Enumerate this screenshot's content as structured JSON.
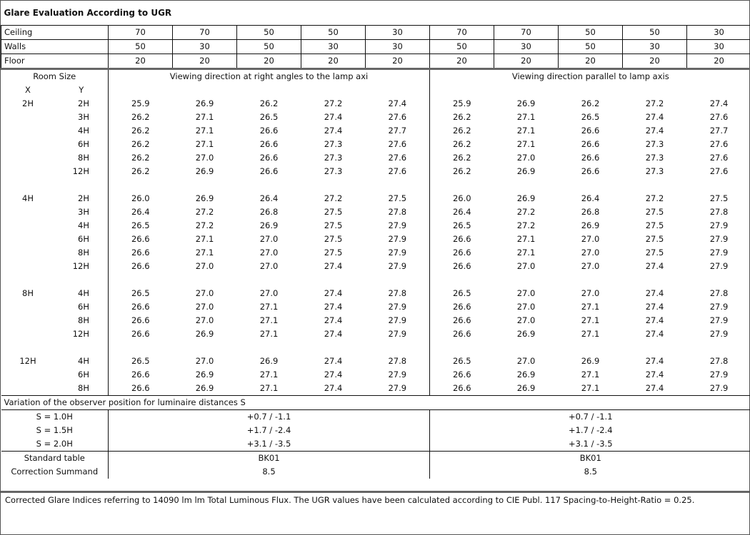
{
  "title": "Glare Evaluation According to UGR",
  "reflectances": [
    {
      "label": "Ceiling",
      "values": [
        "70",
        "70",
        "50",
        "50",
        "30",
        "70",
        "70",
        "50",
        "50",
        "30"
      ]
    },
    {
      "label": "Walls",
      "values": [
        "50",
        "30",
        "50",
        "30",
        "30",
        "50",
        "30",
        "50",
        "30",
        "30"
      ]
    },
    {
      "label": "Floor",
      "values": [
        "20",
        "20",
        "20",
        "20",
        "20",
        "20",
        "20",
        "20",
        "20",
        "20"
      ]
    }
  ],
  "header": {
    "room_size": "Room Size",
    "x": "X",
    "y": "Y",
    "dir_right": "Viewing direction at right angles to the lamp axi",
    "dir_parallel": "Viewing direction parallel to lamp axis"
  },
  "groups": [
    {
      "x": "2H",
      "rows": [
        {
          "y": "2H",
          "v": [
            "25.9",
            "26.9",
            "26.2",
            "27.2",
            "27.4",
            "25.9",
            "26.9",
            "26.2",
            "27.2",
            "27.4"
          ]
        },
        {
          "y": "3H",
          "v": [
            "26.2",
            "27.1",
            "26.5",
            "27.4",
            "27.6",
            "26.2",
            "27.1",
            "26.5",
            "27.4",
            "27.6"
          ]
        },
        {
          "y": "4H",
          "v": [
            "26.2",
            "27.1",
            "26.6",
            "27.4",
            "27.7",
            "26.2",
            "27.1",
            "26.6",
            "27.4",
            "27.7"
          ]
        },
        {
          "y": "6H",
          "v": [
            "26.2",
            "27.1",
            "26.6",
            "27.3",
            "27.6",
            "26.2",
            "27.1",
            "26.6",
            "27.3",
            "27.6"
          ]
        },
        {
          "y": "8H",
          "v": [
            "26.2",
            "27.0",
            "26.6",
            "27.3",
            "27.6",
            "26.2",
            "27.0",
            "26.6",
            "27.3",
            "27.6"
          ]
        },
        {
          "y": "12H",
          "v": [
            "26.2",
            "26.9",
            "26.6",
            "27.3",
            "27.6",
            "26.2",
            "26.9",
            "26.6",
            "27.3",
            "27.6"
          ]
        }
      ]
    },
    {
      "x": "4H",
      "rows": [
        {
          "y": "2H",
          "v": [
            "26.0",
            "26.9",
            "26.4",
            "27.2",
            "27.5",
            "26.0",
            "26.9",
            "26.4",
            "27.2",
            "27.5"
          ]
        },
        {
          "y": "3H",
          "v": [
            "26.4",
            "27.2",
            "26.8",
            "27.5",
            "27.8",
            "26.4",
            "27.2",
            "26.8",
            "27.5",
            "27.8"
          ]
        },
        {
          "y": "4H",
          "v": [
            "26.5",
            "27.2",
            "26.9",
            "27.5",
            "27.9",
            "26.5",
            "27.2",
            "26.9",
            "27.5",
            "27.9"
          ]
        },
        {
          "y": "6H",
          "v": [
            "26.6",
            "27.1",
            "27.0",
            "27.5",
            "27.9",
            "26.6",
            "27.1",
            "27.0",
            "27.5",
            "27.9"
          ]
        },
        {
          "y": "8H",
          "v": [
            "26.6",
            "27.1",
            "27.0",
            "27.5",
            "27.9",
            "26.6",
            "27.1",
            "27.0",
            "27.5",
            "27.9"
          ]
        },
        {
          "y": "12H",
          "v": [
            "26.6",
            "27.0",
            "27.0",
            "27.4",
            "27.9",
            "26.6",
            "27.0",
            "27.0",
            "27.4",
            "27.9"
          ]
        }
      ]
    },
    {
      "x": "8H",
      "rows": [
        {
          "y": "4H",
          "v": [
            "26.5",
            "27.0",
            "27.0",
            "27.4",
            "27.8",
            "26.5",
            "27.0",
            "27.0",
            "27.4",
            "27.8"
          ]
        },
        {
          "y": "6H",
          "v": [
            "26.6",
            "27.0",
            "27.1",
            "27.4",
            "27.9",
            "26.6",
            "27.0",
            "27.1",
            "27.4",
            "27.9"
          ]
        },
        {
          "y": "8H",
          "v": [
            "26.6",
            "27.0",
            "27.1",
            "27.4",
            "27.9",
            "26.6",
            "27.0",
            "27.1",
            "27.4",
            "27.9"
          ]
        },
        {
          "y": "12H",
          "v": [
            "26.6",
            "26.9",
            "27.1",
            "27.4",
            "27.9",
            "26.6",
            "26.9",
            "27.1",
            "27.4",
            "27.9"
          ]
        }
      ]
    },
    {
      "x": "12H",
      "rows": [
        {
          "y": "4H",
          "v": [
            "26.5",
            "27.0",
            "26.9",
            "27.4",
            "27.8",
            "26.5",
            "27.0",
            "26.9",
            "27.4",
            "27.8"
          ]
        },
        {
          "y": "6H",
          "v": [
            "26.6",
            "26.9",
            "27.1",
            "27.4",
            "27.9",
            "26.6",
            "26.9",
            "27.1",
            "27.4",
            "27.9"
          ]
        },
        {
          "y": "8H",
          "v": [
            "26.6",
            "26.9",
            "27.1",
            "27.4",
            "27.9",
            "26.6",
            "26.9",
            "27.1",
            "27.4",
            "27.9"
          ]
        }
      ]
    }
  ],
  "variation": {
    "title": "Variation of the observer position for luminaire distances S",
    "rows": [
      {
        "label": "S = 1.0H",
        "right": "+0.7 / -1.1",
        "parallel": "+0.7 / -1.1"
      },
      {
        "label": "S = 1.5H",
        "right": "+1.7 / -2.4",
        "parallel": "+1.7 / -2.4"
      },
      {
        "label": "S = 2.0H",
        "right": "+3.1 / -3.5",
        "parallel": "+3.1 / -3.5"
      }
    ]
  },
  "standard": {
    "label": "Standard table",
    "right": "BK01",
    "parallel": "BK01"
  },
  "correction": {
    "label": "Correction Summand",
    "right": "8.5",
    "parallel": "8.5"
  },
  "footer": "Corrected Glare Indices referring to 14090 lm lm Total Luminous Flux. The UGR values have been calculated according to CIE Publ. 117    Spacing-to-Height-Ratio = 0.25."
}
